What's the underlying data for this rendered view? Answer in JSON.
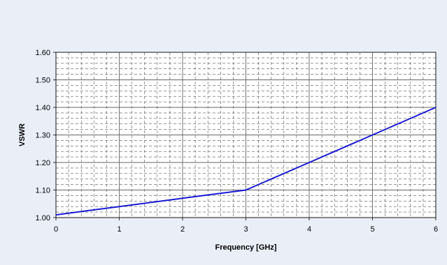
{
  "chart_data": {
    "type": "line",
    "title": "",
    "xlabel": "Frequency [GHz]",
    "ylabel": "VSWR",
    "xlim": [
      0,
      6
    ],
    "ylim": [
      1.0,
      1.6
    ],
    "x_ticks": [
      "0",
      "1",
      "2",
      "3",
      "4",
      "5",
      "6"
    ],
    "y_ticks": [
      "1.00",
      "1.10",
      "1.20",
      "1.30",
      "1.40",
      "1.50",
      "1.60"
    ],
    "grid": true,
    "legend": "none",
    "series": [
      {
        "x": [
          0,
          1,
          2,
          3,
          4,
          5,
          6
        ],
        "values": [
          1.01,
          1.04,
          1.07,
          1.1,
          1.2,
          1.3,
          1.4
        ],
        "color": "#1a1ad6"
      }
    ]
  }
}
